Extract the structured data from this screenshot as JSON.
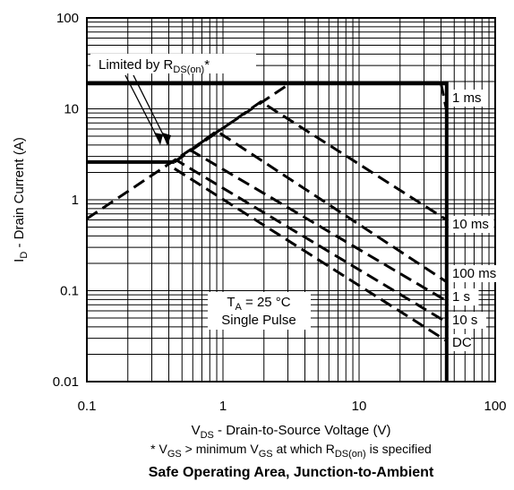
{
  "chart_data": {
    "type": "line",
    "title": "Safe Operating Area, Junction-to-Ambient",
    "xaxis": {
      "label_main": "V",
      "label_sub": "DS",
      "label_rest": " - Drain-to-Source Voltage (V)",
      "scale": "log",
      "range": [
        0.1,
        100
      ],
      "tick_values": [
        0.1,
        1,
        10,
        100
      ],
      "tick_labels": [
        "0.1",
        "1",
        "10",
        "100"
      ]
    },
    "yaxis": {
      "label_main": "I",
      "label_sub": "D",
      "label_rest": " - Drain Current (A)",
      "scale": "log",
      "range": [
        0.01,
        100
      ],
      "tick_values": [
        0.01,
        0.1,
        1,
        10,
        100
      ],
      "tick_labels": [
        "0.01",
        "0.1",
        "1",
        "10",
        "100"
      ]
    },
    "grid": true,
    "series": [
      {
        "name": "1 ms",
        "style": "dashed",
        "points": [
          [
            0.1,
            0.62
          ],
          [
            3.1,
            19
          ],
          [
            40,
            19
          ],
          [
            44,
            9.5
          ]
        ]
      },
      {
        "name": "10 ms",
        "style": "dashed",
        "points": [
          [
            0.44,
            2.6
          ],
          [
            1.9,
            12
          ],
          [
            44,
            0.6
          ]
        ]
      },
      {
        "name": "100 ms",
        "style": "dashed",
        "points": [
          [
            0.44,
            2.6
          ],
          [
            0.9,
            5.7
          ],
          [
            44,
            0.125
          ]
        ]
      },
      {
        "name": "1 s",
        "style": "dashed",
        "points": [
          [
            0.44,
            2.6
          ],
          [
            0.58,
            3.5
          ],
          [
            44,
            0.077
          ]
        ]
      },
      {
        "name": "10 s",
        "style": "dashed",
        "points": [
          [
            0.44,
            2.6
          ],
          [
            0.45,
            2.75
          ],
          [
            44,
            0.045
          ]
        ]
      },
      {
        "name": "DC",
        "style": "dashed",
        "points": [
          [
            0.44,
            2.2
          ],
          [
            44,
            0.028
          ]
        ]
      },
      {
        "name": "",
        "style": "solid",
        "points": [
          [
            0.1,
            19
          ],
          [
            44,
            19
          ],
          [
            44,
            0.01
          ]
        ]
      },
      {
        "name": "",
        "style": "solid",
        "points": [
          [
            0.1,
            2.6
          ],
          [
            0.44,
            2.6
          ]
        ]
      }
    ],
    "curve_labels": [
      "1 ms",
      "10 ms",
      "100 ms",
      "1 s",
      "10 s",
      "DC"
    ],
    "annotations": {
      "limited_main": "Limited by R",
      "limited_sub": "DS(on)",
      "limited_tail": "*",
      "ta_main": "T",
      "ta_sub": "A",
      "ta_tail": " = 25 °C",
      "single_pulse": "Single Pulse"
    },
    "footnote": {
      "p1": "* V",
      "s1": "GS",
      "p2": " > minimum V",
      "s2": "GS",
      "p3": " at which R",
      "s3": "DS(on)",
      "p4": " is specified"
    }
  }
}
